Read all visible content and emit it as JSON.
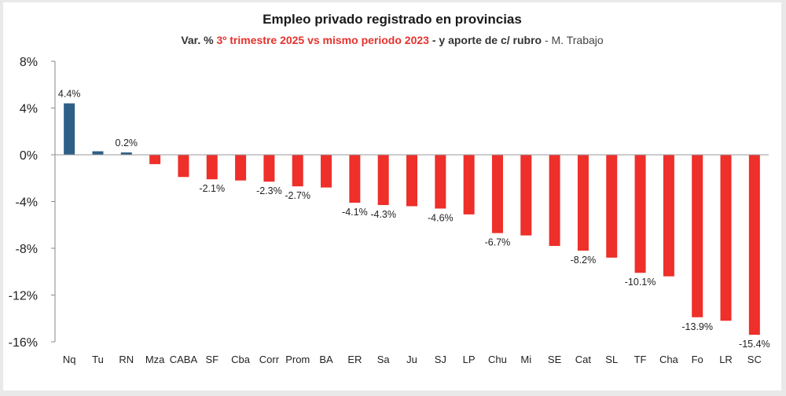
{
  "chart_data": {
    "type": "bar",
    "title": "Empleo privado registrado en provincias",
    "subtitle": {
      "prefix": "Var. % ",
      "period": "3º trimestre 2025 vs mismo periodo 2023",
      "middle": " - y aporte de c/ rubro",
      "source": " - M. Trabajo"
    },
    "ylim": [
      -16,
      8
    ],
    "yticks": [
      8,
      4,
      0,
      -4,
      -8,
      -12,
      -16
    ],
    "ytick_labels": [
      "8%",
      "4%",
      "0%",
      "-4%",
      "-8%",
      "-12%",
      "-16%"
    ],
    "categories": [
      "Nq",
      "Tu",
      "RN",
      "Mza",
      "CABA",
      "SF",
      "Cba",
      "Corr",
      "Prom",
      "BA",
      "ER",
      "Sa",
      "Ju",
      "SJ",
      "LP",
      "Chu",
      "Mi",
      "SE",
      "Cat",
      "SL",
      "TF",
      "Cha",
      "Fo",
      "LR",
      "SC"
    ],
    "values": [
      4.4,
      0.3,
      0.2,
      -0.8,
      -1.9,
      -2.1,
      -2.2,
      -2.3,
      -2.7,
      -2.8,
      -4.1,
      -4.3,
      -4.4,
      -4.6,
      -5.1,
      -6.7,
      -6.9,
      -7.8,
      -8.2,
      -8.8,
      -10.1,
      -10.4,
      -13.9,
      -14.2,
      -15.4
    ],
    "data_labels": [
      "4.4%",
      "",
      "0.2%",
      "",
      "",
      "-2.1%",
      "",
      "-2.3%",
      "-2.7%",
      "",
      "-4.1%",
      "-4.3%",
      "",
      "-4.6%",
      "",
      "-6.7%",
      "",
      "",
      "-8.2%",
      "",
      "-10.1%",
      "",
      "-13.9%",
      "",
      "-15.4%"
    ],
    "colors": {
      "positive": "#2e5f87",
      "negative": "#ee2f2a"
    },
    "grid": false,
    "legend": "none"
  }
}
